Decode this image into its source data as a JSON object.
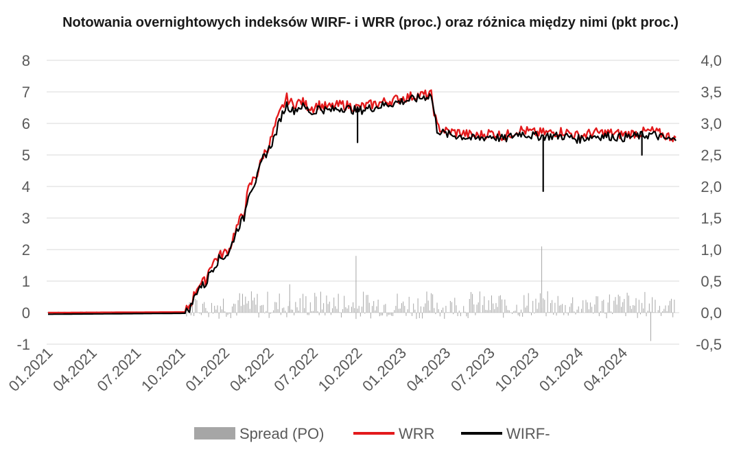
{
  "chart_data": {
    "type": "line",
    "title": "Notowania overnightowych indeksów WIRF- i WRR (proc.) oraz różnica między nimi (pkt proc.)",
    "y_left": {
      "ticks": [
        "8",
        "7",
        "6",
        "5",
        "4",
        "3",
        "2",
        "1",
        "0",
        "-1"
      ],
      "ylim": [
        -1,
        8
      ]
    },
    "y_right": {
      "ticks": [
        "4,0",
        "3,5",
        "3,0",
        "2,5",
        "2,0",
        "1,5",
        "1,0",
        "0,5",
        "0,0",
        "-0,5"
      ],
      "ylim": [
        -0.5,
        4.0
      ]
    },
    "x_ticks": [
      "01.2021",
      "04.2021",
      "07.2021",
      "10.2021",
      "01.2022",
      "04.2022",
      "07.2022",
      "10.2022",
      "01.2023",
      "04.2023",
      "07.2023",
      "10.2023",
      "01.2024",
      "04.2024"
    ],
    "x_range_months": [
      0,
      18.1
    ],
    "grid": "horizontal",
    "legend_position": "bottom",
    "series": [
      {
        "name": "WRR",
        "axis": "left",
        "color": "#e31a1c",
        "points": [
          [
            0,
            0.0
          ],
          [
            9.3,
            0.02
          ],
          [
            9.7,
            0.3
          ],
          [
            10.2,
            0.9
          ],
          [
            10.7,
            1.0
          ],
          [
            11.0,
            1.5
          ],
          [
            11.6,
            1.8
          ],
          [
            12.0,
            1.9
          ],
          [
            12.3,
            2.0
          ],
          [
            12.7,
            2.6
          ],
          [
            13.0,
            2.9
          ],
          [
            13.3,
            3.2
          ],
          [
            13.6,
            3.9
          ],
          [
            14.0,
            4.3
          ],
          [
            14.2,
            4.4
          ],
          [
            14.6,
            5.0
          ],
          [
            15.0,
            5.3
          ],
          [
            15.4,
            5.9
          ],
          [
            15.8,
            6.4
          ],
          [
            16.2,
            6.8
          ],
          [
            16.6,
            6.6
          ],
          [
            17.2,
            6.7
          ],
          [
            17.6,
            6.55
          ],
          [
            18.0,
            6.5
          ],
          [
            18.3,
            6.6
          ],
          [
            19.0,
            6.5
          ],
          [
            20.0,
            6.6
          ],
          [
            21.0,
            6.5
          ],
          [
            22.0,
            6.6
          ],
          [
            23.0,
            6.7
          ],
          [
            24.0,
            6.8
          ],
          [
            25.2,
            6.9
          ],
          [
            26.0,
            6.9
          ],
          [
            26.4,
            5.9
          ],
          [
            27.0,
            5.75
          ],
          [
            28.0,
            5.7
          ],
          [
            29.0,
            5.6
          ],
          [
            30.0,
            5.7
          ],
          [
            31.0,
            5.6
          ],
          [
            32.0,
            5.8
          ],
          [
            33.0,
            5.7
          ],
          [
            34.0,
            5.7
          ],
          [
            35.0,
            5.75
          ],
          [
            36.0,
            5.6
          ],
          [
            37.0,
            5.7
          ],
          [
            38.0,
            5.7
          ],
          [
            39.0,
            5.65
          ],
          [
            40.0,
            5.7
          ],
          [
            41.0,
            5.75
          ],
          [
            42.0,
            5.6
          ],
          [
            42.6,
            5.55
          ]
        ]
      },
      {
        "name": "WIRF-",
        "axis": "left",
        "color": "#000000",
        "points": [
          [
            0,
            -0.05
          ],
          [
            9.3,
            -0.02
          ],
          [
            9.7,
            0.2
          ],
          [
            10.2,
            0.8
          ],
          [
            10.7,
            0.9
          ],
          [
            11.0,
            1.3
          ],
          [
            11.6,
            1.7
          ],
          [
            12.0,
            1.8
          ],
          [
            12.3,
            1.9
          ],
          [
            12.7,
            2.5
          ],
          [
            13.0,
            2.8
          ],
          [
            13.3,
            3.0
          ],
          [
            13.6,
            3.8
          ],
          [
            14.0,
            4.1
          ],
          [
            14.2,
            4.3
          ],
          [
            14.6,
            4.9
          ],
          [
            15.0,
            5.2
          ],
          [
            15.4,
            5.6
          ],
          [
            15.8,
            6.2
          ],
          [
            16.2,
            6.6
          ],
          [
            16.6,
            6.4
          ],
          [
            17.2,
            6.55
          ],
          [
            17.6,
            6.45
          ],
          [
            18.0,
            6.3
          ],
          [
            18.3,
            6.5
          ],
          [
            19.0,
            6.4
          ],
          [
            20.0,
            6.5
          ],
          [
            21.0,
            6.4
          ],
          [
            22.0,
            6.5
          ],
          [
            23.0,
            6.6
          ],
          [
            24.0,
            6.7
          ],
          [
            25.2,
            6.8
          ],
          [
            26.0,
            6.9
          ],
          [
            26.4,
            5.8
          ],
          [
            27.0,
            5.65
          ],
          [
            28.0,
            5.6
          ],
          [
            29.0,
            5.5
          ],
          [
            30.0,
            5.6
          ],
          [
            31.0,
            5.5
          ],
          [
            32.0,
            5.7
          ],
          [
            33.0,
            5.6
          ],
          [
            34.0,
            5.6
          ],
          [
            35.0,
            5.6
          ],
          [
            36.0,
            5.5
          ],
          [
            37.0,
            5.6
          ],
          [
            38.0,
            5.6
          ],
          [
            39.0,
            5.55
          ],
          [
            40.0,
            5.6
          ],
          [
            41.0,
            5.65
          ],
          [
            42.0,
            5.5
          ],
          [
            42.6,
            5.45
          ]
        ],
        "dips": [
          [
            21.0,
            5.4
          ],
          [
            33.6,
            3.85
          ],
          [
            40.3,
            5.0
          ]
        ]
      },
      {
        "name": "Spread (PO)",
        "axis": "right",
        "type": "bar",
        "color": "#a6a6a6",
        "summary": {
          "typical_range_2021": [
            0.0,
            0.02
          ],
          "typical_range_from_10_2021": [
            -0.1,
            0.35
          ],
          "spikes": [
            [
              16.4,
              0.45
            ],
            [
              20.9,
              0.9
            ],
            [
              33.5,
              1.05
            ],
            [
              40.9,
              -0.45
            ]
          ]
        }
      }
    ]
  }
}
